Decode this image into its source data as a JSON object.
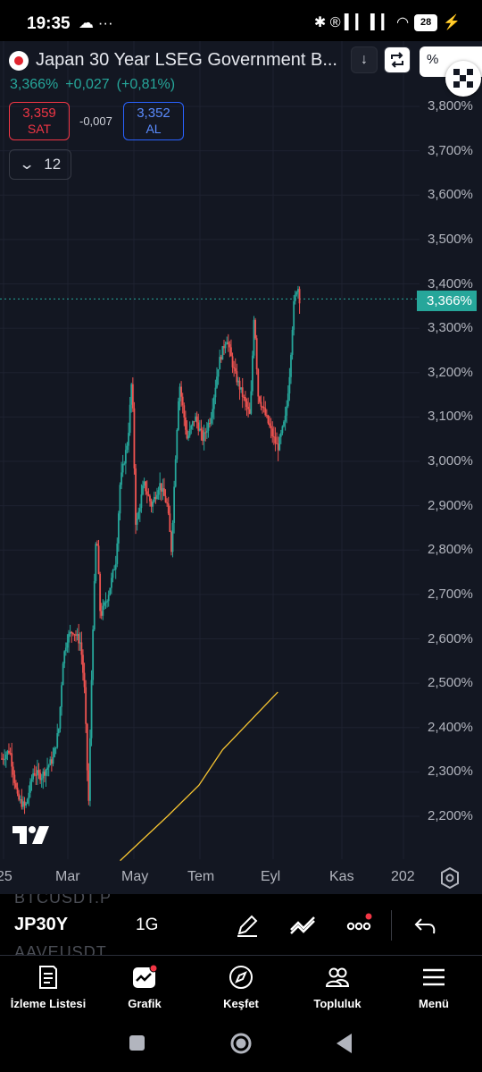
{
  "status_bar": {
    "time": "19:35",
    "left_icons": "☁ ···",
    "right_icons": "✱ ® ▍▎ ▍▎ ◠",
    "battery": "28"
  },
  "header": {
    "symbol_title": "Japan 30 Year LSEG Government B...",
    "last_price": "3,366%",
    "change": "+0,027",
    "change_pct": "(+0,81%)",
    "sell_price": "3,359",
    "sell_label": "SAT",
    "spread": "-0,007",
    "buy_price": "3,352",
    "buy_label": "AL",
    "indicator_count": "12",
    "percent_button": "%"
  },
  "chart_data": {
    "type": "candlestick",
    "instrument": "Japan 30 Year LSEG Government Bond",
    "y_axis_ticks": [
      "3,800%",
      "3,700%",
      "3,600%",
      "3,500%",
      "3,400%",
      "3,300%",
      "3,200%",
      "3,100%",
      "3,000%",
      "2,900%",
      "2,800%",
      "2,700%",
      "2,600%",
      "2,500%",
      "2,400%",
      "2,300%",
      "2,200%"
    ],
    "ylim": [
      2.1,
      3.84
    ],
    "current_price_label": "3,366%",
    "current_price": 3.366,
    "x_axis_ticks": [
      "25",
      "Mar",
      "May",
      "Tem",
      "Eyl",
      "Kas",
      "202"
    ],
    "moving_average_points": [
      [
        0.3,
        2.1
      ],
      [
        0.42,
        2.2
      ],
      [
        0.5,
        2.27
      ],
      [
        0.56,
        2.35
      ],
      [
        0.7,
        2.48
      ]
    ],
    "price_path": [
      [
        0.0,
        2.33
      ],
      [
        0.02,
        2.35
      ],
      [
        0.04,
        2.24
      ],
      [
        0.06,
        2.22
      ],
      [
        0.08,
        2.3
      ],
      [
        0.1,
        2.29
      ],
      [
        0.13,
        2.33
      ],
      [
        0.145,
        2.4
      ],
      [
        0.155,
        2.55
      ],
      [
        0.165,
        2.6
      ],
      [
        0.18,
        2.62
      ],
      [
        0.2,
        2.59
      ],
      [
        0.21,
        2.48
      ],
      [
        0.22,
        2.22
      ],
      [
        0.23,
        2.6
      ],
      [
        0.24,
        2.85
      ],
      [
        0.25,
        2.65
      ],
      [
        0.27,
        2.7
      ],
      [
        0.29,
        2.78
      ],
      [
        0.3,
        2.95
      ],
      [
        0.32,
        3.05
      ],
      [
        0.33,
        3.19
      ],
      [
        0.34,
        2.85
      ],
      [
        0.36,
        2.95
      ],
      [
        0.38,
        2.9
      ],
      [
        0.4,
        2.95
      ],
      [
        0.42,
        2.9
      ],
      [
        0.43,
        2.8
      ],
      [
        0.44,
        3.0
      ],
      [
        0.45,
        3.18
      ],
      [
        0.47,
        3.05
      ],
      [
        0.49,
        3.1
      ],
      [
        0.51,
        3.05
      ],
      [
        0.53,
        3.1
      ],
      [
        0.55,
        3.22
      ],
      [
        0.57,
        3.28
      ],
      [
        0.59,
        3.2
      ],
      [
        0.61,
        3.15
      ],
      [
        0.63,
        3.1
      ],
      [
        0.64,
        3.34
      ],
      [
        0.65,
        3.15
      ],
      [
        0.67,
        3.1
      ],
      [
        0.69,
        3.05
      ],
      [
        0.7,
        3.03
      ],
      [
        0.72,
        3.1
      ],
      [
        0.73,
        3.2
      ],
      [
        0.74,
        3.35
      ],
      [
        0.75,
        3.4
      ],
      [
        0.755,
        3.366
      ]
    ]
  },
  "toolbar": {
    "ghost_top": "BTCUSDT.P",
    "ghost_bottom": "AAVEUSDT",
    "symbol_code": "JP30Y",
    "interval": "1G"
  },
  "bottom_nav": {
    "items": [
      {
        "label": "İzleme Listesi"
      },
      {
        "label": "Grafik"
      },
      {
        "label": "Keşfet"
      },
      {
        "label": "Topluluk"
      },
      {
        "label": "Menü"
      }
    ]
  },
  "colors": {
    "background": "#131722",
    "up": "#26a69a",
    "down": "#ef5350",
    "ma_line": "#f7c531",
    "buy": "#2962ff",
    "sell": "#f23645"
  }
}
